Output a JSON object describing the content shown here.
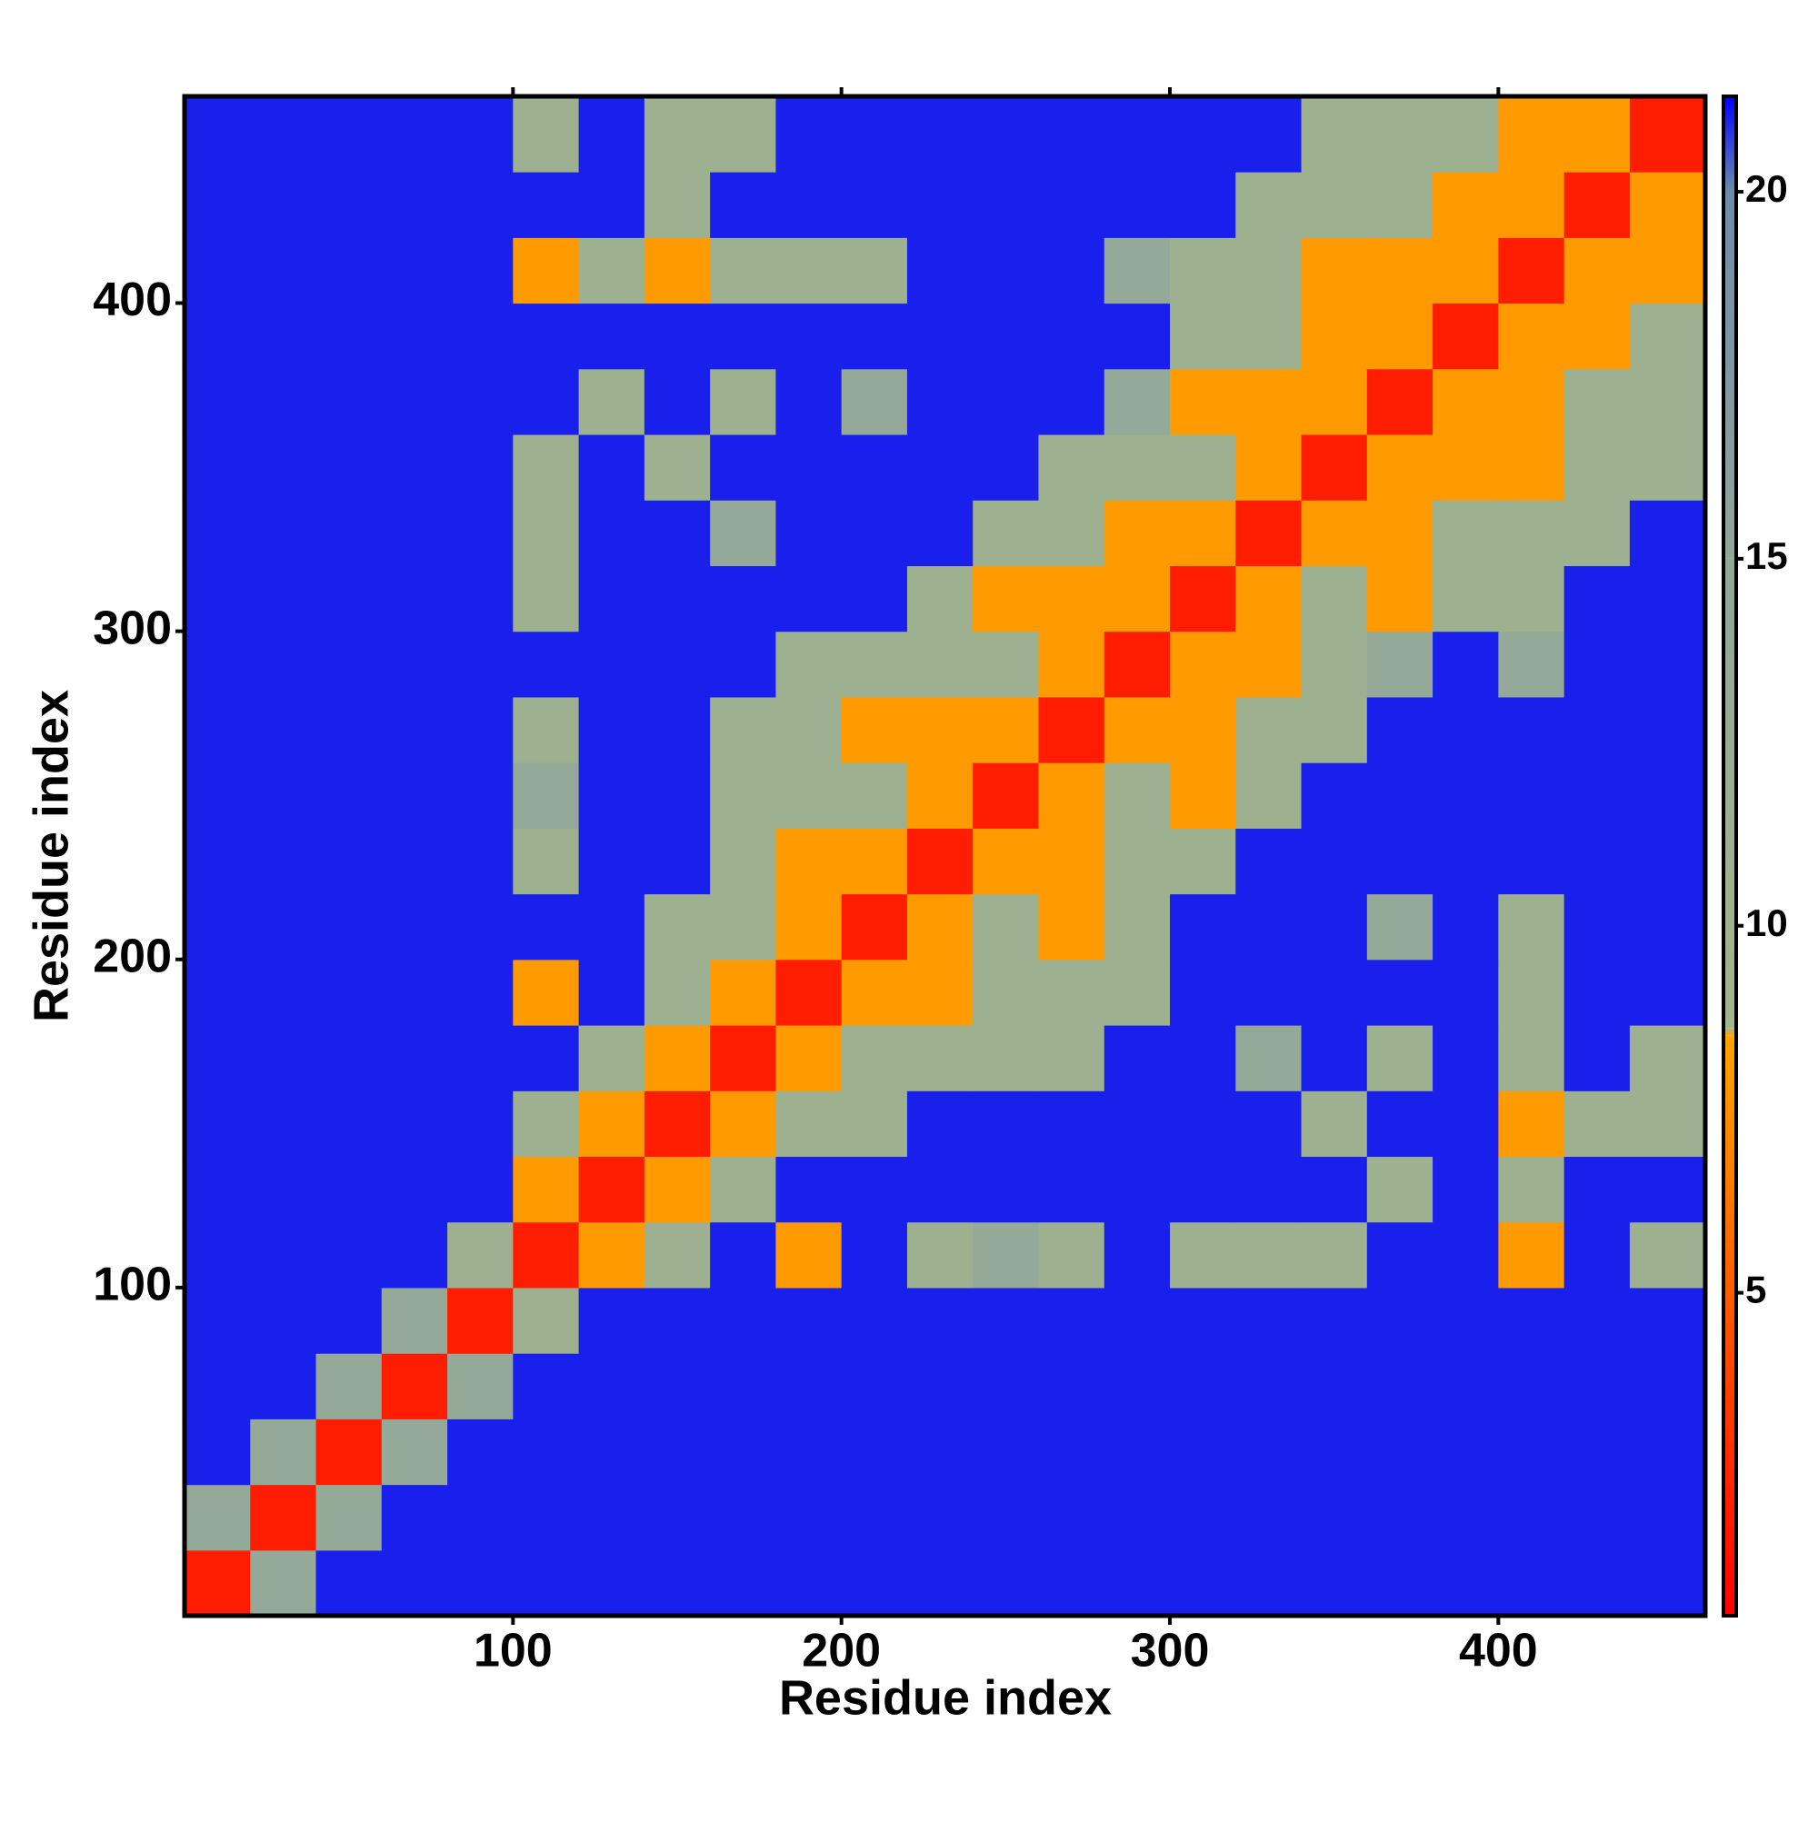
{
  "chart_data": {
    "type": "heatmap",
    "x_label": "Residue index",
    "y_label": "Residue index",
    "bins": [
      0,
      20,
      40,
      60,
      80,
      100,
      120,
      140,
      160,
      180,
      200,
      220,
      240,
      260,
      280,
      300,
      320,
      340,
      360,
      380,
      400,
      420,
      440,
      463
    ],
    "xlim": [
      0,
      463
    ],
    "ylim": [
      0,
      463
    ],
    "xticks": [
      100,
      200,
      300,
      400
    ],
    "yticks": [
      100,
      200,
      300,
      400
    ],
    "zlim": [
      0.6,
      21.3
    ],
    "zticks": [
      5,
      10,
      15,
      20
    ],
    "colorscale": [
      [
        0.6,
        "#ff0000"
      ],
      [
        8.5,
        "#ffa500"
      ],
      [
        8.6,
        "#a3b78a"
      ],
      [
        15,
        "#92a69a"
      ],
      [
        20,
        "#6d8cab"
      ],
      [
        21.3,
        "#0000ff"
      ]
    ],
    "z": [
      [
        2,
        14,
        21,
        21,
        21,
        21,
        21,
        21,
        21,
        21,
        21,
        21,
        21,
        21,
        21,
        21,
        21,
        21,
        21,
        21,
        21,
        21,
        21
      ],
      [
        14,
        2,
        14,
        21,
        21,
        21,
        21,
        21,
        21,
        21,
        21,
        21,
        21,
        21,
        21,
        21,
        21,
        21,
        21,
        21,
        21,
        21,
        21
      ],
      [
        21,
        14,
        2,
        14,
        21,
        21,
        21,
        21,
        21,
        21,
        21,
        21,
        21,
        21,
        21,
        21,
        21,
        21,
        21,
        21,
        21,
        21,
        21
      ],
      [
        21,
        21,
        14,
        2,
        14,
        21,
        21,
        21,
        21,
        21,
        21,
        21,
        21,
        21,
        21,
        21,
        21,
        21,
        21,
        21,
        21,
        21,
        21
      ],
      [
        21,
        21,
        21,
        14,
        2,
        11,
        21,
        21,
        21,
        21,
        21,
        21,
        21,
        21,
        21,
        21,
        21,
        21,
        21,
        21,
        21,
        21,
        21
      ],
      [
        21,
        21,
        21,
        21,
        11,
        2,
        8,
        11,
        21,
        8,
        21,
        11,
        14,
        11,
        21,
        11,
        11,
        11,
        21,
        21,
        8,
        21,
        11
      ],
      [
        21,
        21,
        21,
        21,
        21,
        8,
        2,
        8,
        11,
        21,
        21,
        21,
        21,
        21,
        21,
        21,
        21,
        21,
        11,
        21,
        11,
        21,
        21
      ],
      [
        21,
        21,
        21,
        21,
        21,
        11,
        8,
        2,
        8,
        11,
        11,
        21,
        21,
        21,
        21,
        21,
        21,
        11,
        21,
        21,
        8,
        11,
        11
      ],
      [
        21,
        21,
        21,
        21,
        21,
        21,
        11,
        8,
        2,
        8,
        11,
        11,
        11,
        11,
        21,
        21,
        14,
        21,
        11,
        21,
        11,
        21,
        11
      ],
      [
        21,
        21,
        21,
        21,
        21,
        8,
        21,
        11,
        8,
        2,
        8,
        8,
        11,
        11,
        11,
        21,
        21,
        21,
        21,
        21,
        11,
        21,
        21
      ],
      [
        21,
        21,
        21,
        21,
        21,
        21,
        21,
        11,
        11,
        8,
        2,
        8,
        11,
        8,
        11,
        21,
        21,
        21,
        14,
        21,
        11,
        21,
        21
      ],
      [
        21,
        21,
        21,
        21,
        21,
        11,
        21,
        21,
        11,
        8,
        8,
        2,
        8,
        8,
        11,
        11,
        21,
        21,
        21,
        21,
        21,
        21,
        21
      ],
      [
        21,
        21,
        21,
        21,
        21,
        14,
        21,
        21,
        11,
        11,
        11,
        8,
        2,
        8,
        11,
        8,
        11,
        21,
        21,
        21,
        21,
        21,
        21
      ],
      [
        21,
        21,
        21,
        21,
        21,
        11,
        21,
        21,
        11,
        11,
        8,
        8,
        8,
        2,
        8,
        8,
        11,
        11,
        21,
        21,
        21,
        21,
        21
      ],
      [
        21,
        21,
        21,
        21,
        21,
        21,
        21,
        21,
        21,
        11,
        11,
        11,
        11,
        8,
        2,
        8,
        8,
        11,
        14,
        21,
        14,
        21,
        21
      ],
      [
        21,
        21,
        21,
        21,
        21,
        11,
        21,
        21,
        21,
        21,
        21,
        11,
        8,
        8,
        8,
        2,
        8,
        11,
        8,
        11,
        11,
        21,
        21
      ],
      [
        21,
        21,
        21,
        21,
        21,
        11,
        21,
        21,
        14,
        21,
        21,
        21,
        11,
        11,
        8,
        8,
        2,
        8,
        8,
        11,
        11,
        11,
        21
      ],
      [
        21,
        21,
        21,
        21,
        21,
        11,
        21,
        11,
        21,
        21,
        21,
        21,
        21,
        11,
        11,
        11,
        8,
        2,
        8,
        8,
        8,
        11,
        11
      ],
      [
        21,
        21,
        21,
        21,
        21,
        21,
        11,
        21,
        11,
        21,
        14,
        21,
        21,
        21,
        14,
        8,
        8,
        8,
        2,
        8,
        8,
        11,
        11
      ],
      [
        21,
        21,
        21,
        21,
        21,
        21,
        21,
        21,
        21,
        21,
        21,
        21,
        21,
        21,
        21,
        11,
        11,
        8,
        8,
        2,
        8,
        8,
        11
      ],
      [
        21,
        21,
        21,
        21,
        21,
        8,
        11,
        8,
        11,
        11,
        11,
        21,
        21,
        21,
        14,
        11,
        11,
        8,
        8,
        8,
        2,
        8,
        8
      ],
      [
        21,
        21,
        21,
        21,
        21,
        21,
        21,
        11,
        21,
        21,
        21,
        21,
        21,
        21,
        21,
        21,
        11,
        11,
        11,
        8,
        8,
        2,
        8
      ],
      [
        21,
        21,
        21,
        21,
        21,
        11,
        21,
        11,
        11,
        21,
        21,
        21,
        21,
        21,
        21,
        21,
        21,
        11,
        11,
        11,
        8,
        8,
        2
      ]
    ]
  }
}
